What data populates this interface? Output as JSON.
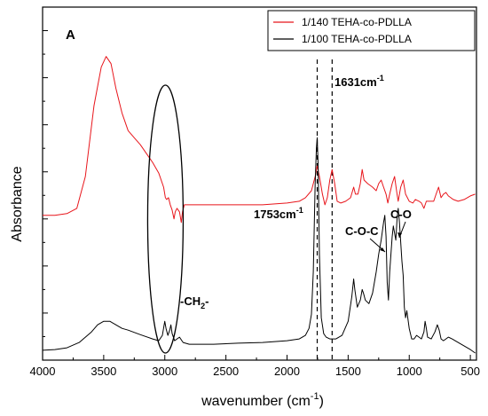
{
  "chart_data": {
    "type": "line",
    "panel_label": "A",
    "xlabel": "wavenumber (cm",
    "xlabel_sup": "-1",
    "xlabel_end": ")",
    "ylabel": "Absorbance",
    "xlim": [
      4000,
      450
    ],
    "x_reversed": true,
    "xticks": [
      4000,
      3500,
      3000,
      2500,
      2000,
      1500,
      1000,
      500
    ],
    "y_tick_labels": "none",
    "legend_position": "top-right",
    "series": [
      {
        "name": "1/140 TEHA-co-PDLLA",
        "color": "#e8151b",
        "points": [
          [
            4000,
            0.41
          ],
          [
            3900,
            0.41
          ],
          [
            3800,
            0.415
          ],
          [
            3720,
            0.43
          ],
          [
            3650,
            0.52
          ],
          [
            3580,
            0.72
          ],
          [
            3520,
            0.83
          ],
          [
            3480,
            0.86
          ],
          [
            3440,
            0.84
          ],
          [
            3400,
            0.77
          ],
          [
            3350,
            0.7
          ],
          [
            3300,
            0.65
          ],
          [
            3250,
            0.63
          ],
          [
            3200,
            0.61
          ],
          [
            3150,
            0.585
          ],
          [
            3100,
            0.56
          ],
          [
            3050,
            0.53
          ],
          [
            3010,
            0.49
          ],
          [
            2995,
            0.46
          ],
          [
            2985,
            0.455
          ],
          [
            2970,
            0.46
          ],
          [
            2955,
            0.44
          ],
          [
            2940,
            0.425
          ],
          [
            2925,
            0.4
          ],
          [
            2915,
            0.42
          ],
          [
            2900,
            0.43
          ],
          [
            2880,
            0.42
          ],
          [
            2865,
            0.39
          ],
          [
            2855,
            0.42
          ],
          [
            2840,
            0.44
          ],
          [
            2800,
            0.44
          ],
          [
            2600,
            0.44
          ],
          [
            2400,
            0.44
          ],
          [
            2200,
            0.44
          ],
          [
            2000,
            0.445
          ],
          [
            1900,
            0.45
          ],
          [
            1850,
            0.46
          ],
          [
            1800,
            0.48
          ],
          [
            1770,
            0.52
          ],
          [
            1753,
            0.55
          ],
          [
            1735,
            0.52
          ],
          [
            1710,
            0.47
          ],
          [
            1690,
            0.44
          ],
          [
            1670,
            0.46
          ],
          [
            1650,
            0.51
          ],
          [
            1631,
            0.54
          ],
          [
            1610,
            0.5
          ],
          [
            1590,
            0.45
          ],
          [
            1560,
            0.445
          ],
          [
            1520,
            0.45
          ],
          [
            1480,
            0.46
          ],
          [
            1455,
            0.49
          ],
          [
            1440,
            0.47
          ],
          [
            1420,
            0.47
          ],
          [
            1400,
            0.5
          ],
          [
            1385,
            0.54
          ],
          [
            1370,
            0.51
          ],
          [
            1340,
            0.5
          ],
          [
            1300,
            0.49
          ],
          [
            1270,
            0.48
          ],
          [
            1250,
            0.5
          ],
          [
            1230,
            0.51
          ],
          [
            1210,
            0.49
          ],
          [
            1190,
            0.47
          ],
          [
            1175,
            0.445
          ],
          [
            1160,
            0.47
          ],
          [
            1140,
            0.5
          ],
          [
            1120,
            0.52
          ],
          [
            1100,
            0.47
          ],
          [
            1090,
            0.45
          ],
          [
            1070,
            0.49
          ],
          [
            1050,
            0.51
          ],
          [
            1030,
            0.47
          ],
          [
            1000,
            0.45
          ],
          [
            970,
            0.445
          ],
          [
            950,
            0.455
          ],
          [
            920,
            0.45
          ],
          [
            900,
            0.445
          ],
          [
            880,
            0.43
          ],
          [
            860,
            0.45
          ],
          [
            840,
            0.45
          ],
          [
            800,
            0.45
          ],
          [
            780,
            0.47
          ],
          [
            760,
            0.49
          ],
          [
            740,
            0.46
          ],
          [
            720,
            0.47
          ],
          [
            700,
            0.475
          ],
          [
            680,
            0.465
          ],
          [
            660,
            0.46
          ],
          [
            640,
            0.455
          ],
          [
            600,
            0.45
          ],
          [
            550,
            0.455
          ],
          [
            500,
            0.465
          ],
          [
            460,
            0.47
          ]
        ]
      },
      {
        "name": "1/100 TEHA-co-PDLLA",
        "color": "#000000",
        "points": [
          [
            4000,
            0.028
          ],
          [
            3900,
            0.03
          ],
          [
            3800,
            0.035
          ],
          [
            3700,
            0.05
          ],
          [
            3600,
            0.08
          ],
          [
            3550,
            0.1
          ],
          [
            3500,
            0.11
          ],
          [
            3450,
            0.11
          ],
          [
            3400,
            0.1
          ],
          [
            3350,
            0.09
          ],
          [
            3300,
            0.085
          ],
          [
            3200,
            0.072
          ],
          [
            3100,
            0.06
          ],
          [
            3050,
            0.055
          ],
          [
            3020,
            0.07
          ],
          [
            3000,
            0.11
          ],
          [
            2990,
            0.09
          ],
          [
            2975,
            0.07
          ],
          [
            2960,
            0.085
          ],
          [
            2950,
            0.1
          ],
          [
            2940,
            0.075
          ],
          [
            2920,
            0.055
          ],
          [
            2900,
            0.06
          ],
          [
            2880,
            0.065
          ],
          [
            2860,
            0.055
          ],
          [
            2850,
            0.05
          ],
          [
            2800,
            0.045
          ],
          [
            2600,
            0.045
          ],
          [
            2400,
            0.048
          ],
          [
            2200,
            0.05
          ],
          [
            2000,
            0.055
          ],
          [
            1900,
            0.06
          ],
          [
            1850,
            0.07
          ],
          [
            1820,
            0.09
          ],
          [
            1800,
            0.13
          ],
          [
            1785,
            0.25
          ],
          [
            1770,
            0.5
          ],
          [
            1760,
            0.6
          ],
          [
            1753,
            0.63
          ],
          [
            1745,
            0.55
          ],
          [
            1735,
            0.3
          ],
          [
            1720,
            0.12
          ],
          [
            1700,
            0.075
          ],
          [
            1680,
            0.065
          ],
          [
            1650,
            0.06
          ],
          [
            1600,
            0.06
          ],
          [
            1550,
            0.07
          ],
          [
            1500,
            0.11
          ],
          [
            1470,
            0.18
          ],
          [
            1455,
            0.23
          ],
          [
            1445,
            0.2
          ],
          [
            1425,
            0.15
          ],
          [
            1400,
            0.17
          ],
          [
            1385,
            0.2
          ],
          [
            1375,
            0.19
          ],
          [
            1360,
            0.17
          ],
          [
            1330,
            0.16
          ],
          [
            1300,
            0.19
          ],
          [
            1270,
            0.25
          ],
          [
            1250,
            0.3
          ],
          [
            1230,
            0.34
          ],
          [
            1210,
            0.39
          ],
          [
            1200,
            0.41
          ],
          [
            1190,
            0.35
          ],
          [
            1180,
            0.22
          ],
          [
            1170,
            0.17
          ],
          [
            1160,
            0.25
          ],
          [
            1140,
            0.35
          ],
          [
            1130,
            0.38
          ],
          [
            1120,
            0.36
          ],
          [
            1110,
            0.34
          ],
          [
            1100,
            0.4
          ],
          [
            1090,
            0.43
          ],
          [
            1080,
            0.39
          ],
          [
            1060,
            0.28
          ],
          [
            1050,
            0.24
          ],
          [
            1040,
            0.15
          ],
          [
            1030,
            0.12
          ],
          [
            1020,
            0.14
          ],
          [
            1000,
            0.09
          ],
          [
            980,
            0.06
          ],
          [
            960,
            0.06
          ],
          [
            940,
            0.07
          ],
          [
            920,
            0.065
          ],
          [
            900,
            0.06
          ],
          [
            880,
            0.08
          ],
          [
            870,
            0.11
          ],
          [
            860,
            0.09
          ],
          [
            850,
            0.065
          ],
          [
            820,
            0.06
          ],
          [
            790,
            0.08
          ],
          [
            770,
            0.1
          ],
          [
            755,
            0.085
          ],
          [
            740,
            0.06
          ],
          [
            720,
            0.055
          ],
          [
            700,
            0.06
          ],
          [
            680,
            0.065
          ],
          [
            650,
            0.06
          ],
          [
            600,
            0.05
          ],
          [
            550,
            0.04
          ],
          [
            500,
            0.03
          ],
          [
            460,
            0.02
          ]
        ]
      }
    ],
    "annotations": {
      "peak_1753": "1753cm",
      "peak_1753_sup": "-1",
      "peak_1631": "1631cm",
      "peak_1631_sup": "-1",
      "ch2": "-CH",
      "ch2_sub": "2",
      "ch2_end": "-",
      "coc": "C-O-C",
      "co": "C-O"
    },
    "reference_lines": [
      1753,
      1631
    ]
  }
}
